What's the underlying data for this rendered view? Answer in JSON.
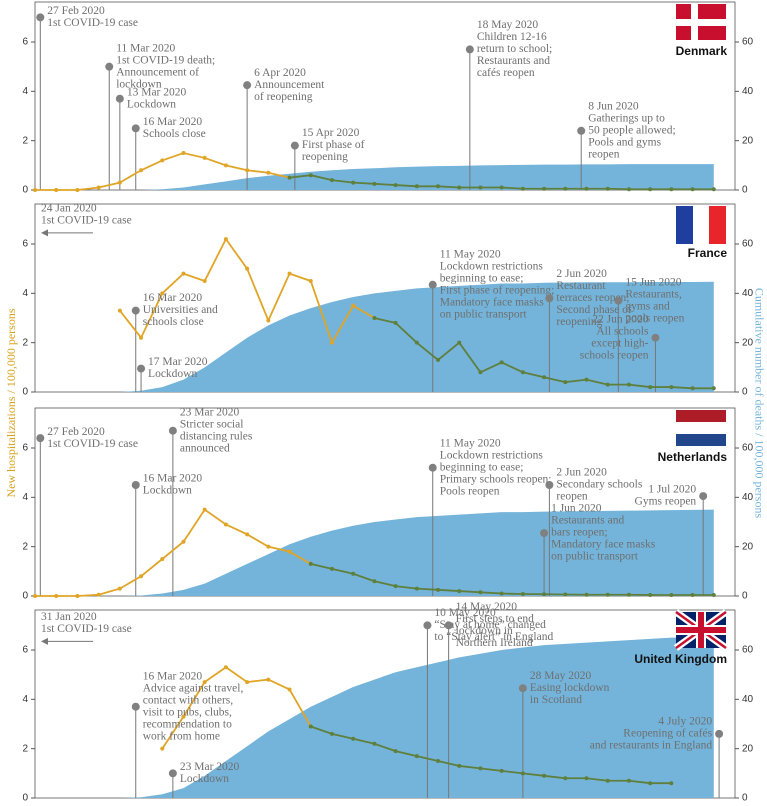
{
  "ylabel": "New hospitalizations / 100,000 persons",
  "y2label": "Cumulative number of deaths / 100,000 persons",
  "chart_data": [
    {
      "type": "line",
      "title": "Denmark",
      "x": [
        "2020-02-26",
        "2020-03-01",
        "2020-03-05",
        "2020-03-09",
        "2020-03-13",
        "2020-03-17",
        "2020-03-21",
        "2020-03-25",
        "2020-03-29",
        "2020-04-02",
        "2020-04-06",
        "2020-04-10",
        "2020-04-14",
        "2020-04-18",
        "2020-04-22",
        "2020-04-26",
        "2020-04-30",
        "2020-05-04",
        "2020-05-08",
        "2020-05-12",
        "2020-05-16",
        "2020-05-20",
        "2020-05-24",
        "2020-05-28",
        "2020-06-01",
        "2020-06-05",
        "2020-06-09",
        "2020-06-13",
        "2020-06-17",
        "2020-06-21",
        "2020-06-25",
        "2020-06-29",
        "2020-07-03"
      ],
      "xlim": [
        "2020-02-26",
        "2020-07-07"
      ],
      "ylim": [
        0,
        7.5
      ],
      "yticks": [
        0,
        2,
        4,
        6
      ],
      "y2lim": [
        0,
        75
      ],
      "y2ticks": [
        0,
        20,
        40,
        60
      ],
      "series": [
        {
          "color": "#e0a526",
          "values": [
            0,
            0,
            0,
            0.1,
            0.3,
            0.8,
            1.2,
            1.5,
            1.3,
            1.0,
            0.8,
            0.7,
            0.5,
            null,
            null,
            null,
            null,
            null,
            null,
            null,
            null,
            null,
            null,
            null,
            null,
            null,
            null,
            null,
            null,
            null,
            null,
            null,
            null
          ]
        },
        {
          "color": "#5f7f3c",
          "values": [
            null,
            null,
            null,
            null,
            null,
            null,
            null,
            null,
            null,
            null,
            null,
            null,
            0.5,
            0.6,
            0.4,
            0.3,
            0.25,
            0.2,
            0.15,
            0.15,
            0.1,
            0.1,
            0.1,
            0.05,
            0.05,
            0.05,
            0.05,
            0.05,
            0.03,
            0.03,
            0.03,
            0.03,
            0.03
          ]
        },
        {
          "axis": "y2",
          "color": "#74b4da",
          "values": [
            0,
            0,
            0,
            0,
            0,
            0,
            0.3,
            1,
            2.3,
            3.5,
            4.8,
            5.8,
            6.6,
            7.4,
            8,
            8.5,
            8.8,
            9.2,
            9.5,
            9.7,
            9.8,
            10,
            10.1,
            10.2,
            10.3,
            10.3,
            10.4,
            10.4,
            10.5,
            10.5,
            10.5,
            10.5,
            10.5
          ]
        }
      ],
      "annotations": [
        {
          "date": "27 Feb 2020",
          "text": [
            "1st COVID-19 case"
          ],
          "y": 7.0
        },
        {
          "date": "11 Mar 2020",
          "text": [
            "1st COVID-19 death;",
            "Announcement of",
            "lockdown"
          ],
          "y": 5.0
        },
        {
          "date": "13 Mar 2020",
          "text": [
            "Lockdown"
          ],
          "y": 3.7
        },
        {
          "date": "16 Mar 2020",
          "text": [
            "Schools close"
          ],
          "y": 2.5
        },
        {
          "date": "6 Apr 2020",
          "text": [
            "Announcement",
            "of reopening"
          ],
          "y": 4.25
        },
        {
          "date": "15 Apr 2020",
          "text": [
            "First phase of",
            "reopening"
          ],
          "y": 1.8
        },
        {
          "date": "18 May 2020",
          "text": [
            "Children 12-16",
            "return to school;",
            "Restaurants and",
            "cafés reopen"
          ],
          "y": 5.7
        },
        {
          "date": "8 Jun 2020",
          "text": [
            "Gatherings up to",
            "50 people allowed;",
            "Pools and gyms",
            "reopen"
          ],
          "y": 2.4
        }
      ]
    },
    {
      "type": "line",
      "title": "France",
      "x": [
        "2020-02-26",
        "2020-03-01",
        "2020-03-05",
        "2020-03-09",
        "2020-03-13",
        "2020-03-17",
        "2020-03-21",
        "2020-03-25",
        "2020-03-29",
        "2020-04-02",
        "2020-04-06",
        "2020-04-10",
        "2020-04-14",
        "2020-04-18",
        "2020-04-22",
        "2020-04-26",
        "2020-04-30",
        "2020-05-04",
        "2020-05-08",
        "2020-05-12",
        "2020-05-16",
        "2020-05-20",
        "2020-05-24",
        "2020-05-28",
        "2020-06-01",
        "2020-06-05",
        "2020-06-09",
        "2020-06-13",
        "2020-06-17",
        "2020-06-21",
        "2020-06-25",
        "2020-06-29",
        "2020-07-03"
      ],
      "xlim": [
        "2020-02-26",
        "2020-07-07"
      ],
      "ylim": [
        0,
        7.5
      ],
      "yticks": [
        0,
        2,
        4,
        6
      ],
      "y2lim": [
        0,
        75
      ],
      "y2ticks": [
        0,
        20,
        40,
        60
      ],
      "series": [
        {
          "color": "#e0a526",
          "values": [
            null,
            null,
            null,
            null,
            3.3,
            2.2,
            4.0,
            4.8,
            4.5,
            6.2,
            5.0,
            2.9,
            4.8,
            4.5,
            2.0,
            3.5,
            3.0,
            null,
            null,
            null,
            null,
            null,
            null,
            null,
            null,
            null,
            null,
            null,
            null,
            null,
            null,
            null,
            null
          ]
        },
        {
          "color": "#5f7f3c",
          "values": [
            null,
            null,
            null,
            null,
            null,
            null,
            null,
            null,
            null,
            null,
            null,
            null,
            null,
            null,
            null,
            null,
            3.0,
            2.8,
            2.0,
            1.3,
            2.0,
            0.8,
            1.2,
            0.8,
            0.6,
            0.4,
            0.5,
            0.3,
            0.3,
            0.2,
            0.2,
            0.15,
            0.15
          ]
        },
        {
          "axis": "y2",
          "color": "#74b4da",
          "values": [
            0,
            0,
            0,
            0,
            0,
            0.5,
            2,
            5,
            10,
            16,
            22,
            27,
            31,
            34,
            36.5,
            38.5,
            40,
            41,
            42,
            42.5,
            43,
            43.5,
            44,
            44,
            44.3,
            44.4,
            44.5,
            44.5,
            44.5,
            44.6,
            44.6,
            44.6,
            44.7
          ]
        }
      ],
      "annotations": [
        {
          "date": "24 Jan 2020",
          "text": [
            "1st COVID-19 case"
          ],
          "y": 6.45
        },
        {
          "date": "16 Mar 2020",
          "text": [
            "Universities and",
            "schools close"
          ],
          "y": 3.3
        },
        {
          "date": "17 Mar 2020",
          "text": [
            "Lockdown"
          ],
          "y": 0.95
        },
        {
          "date": "11 May 2020",
          "text": [
            "Lockdown restrictions",
            "beginning to ease;",
            "First phase of reopening;",
            "Mandatory face masks",
            "on public transport"
          ],
          "y": 4.35
        },
        {
          "date": "2 Jun 2020",
          "text": [
            "Restaurant",
            "terraces reopen;",
            "Second phase of",
            "reopening"
          ],
          "y": 3.8
        },
        {
          "date": "15 Jun 2020",
          "text": [
            "Restaurants,",
            "gyms and",
            "pools reopen"
          ],
          "y": 3.7
        },
        {
          "date": "22 Jun 2020",
          "text": [
            "All schools",
            "except high-",
            "schools reopen"
          ],
          "y": 2.2
        }
      ]
    },
    {
      "type": "line",
      "title": "Netherlands",
      "x": [
        "2020-02-26",
        "2020-03-01",
        "2020-03-05",
        "2020-03-09",
        "2020-03-13",
        "2020-03-17",
        "2020-03-21",
        "2020-03-25",
        "2020-03-29",
        "2020-04-02",
        "2020-04-06",
        "2020-04-10",
        "2020-04-14",
        "2020-04-18",
        "2020-04-22",
        "2020-04-26",
        "2020-04-30",
        "2020-05-04",
        "2020-05-08",
        "2020-05-12",
        "2020-05-16",
        "2020-05-20",
        "2020-05-24",
        "2020-05-28",
        "2020-06-01",
        "2020-06-05",
        "2020-06-09",
        "2020-06-13",
        "2020-06-17",
        "2020-06-21",
        "2020-06-25",
        "2020-06-29",
        "2020-07-03"
      ],
      "xlim": [
        "2020-02-26",
        "2020-07-07"
      ],
      "ylim": [
        0,
        7.5
      ],
      "yticks": [
        0,
        2,
        4,
        6
      ],
      "y2lim": [
        0,
        75
      ],
      "y2ticks": [
        0,
        20,
        40,
        60
      ],
      "series": [
        {
          "color": "#e0a526",
          "values": [
            0,
            0,
            0,
            0.05,
            0.3,
            0.8,
            1.5,
            2.2,
            3.5,
            2.9,
            2.5,
            2.0,
            1.8,
            1.3,
            null,
            null,
            null,
            null,
            null,
            null,
            null,
            null,
            null,
            null,
            null,
            null,
            null,
            null,
            null,
            null,
            null,
            null,
            null
          ]
        },
        {
          "color": "#5f7f3c",
          "values": [
            null,
            null,
            null,
            null,
            null,
            null,
            null,
            null,
            null,
            null,
            null,
            null,
            null,
            1.3,
            1.1,
            0.9,
            0.6,
            0.4,
            0.3,
            0.25,
            0.2,
            0.15,
            0.1,
            0.08,
            0.07,
            0.06,
            0.05,
            0.05,
            0.05,
            0.04,
            0.04,
            0.04,
            0.04
          ]
        },
        {
          "axis": "y2",
          "color": "#74b4da",
          "values": [
            0,
            0,
            0,
            0,
            0,
            0.2,
            1,
            2.5,
            5,
            9,
            13,
            17,
            21,
            24,
            26.5,
            28.5,
            30,
            31,
            32,
            32.5,
            33,
            33.5,
            34,
            34,
            34.2,
            34.3,
            34.4,
            34.5,
            34.6,
            34.7,
            34.8,
            34.9,
            35
          ]
        }
      ],
      "annotations": [
        {
          "date": "27 Feb 2020",
          "text": [
            "1st COVID-19 case"
          ],
          "y": 6.4
        },
        {
          "date": "16 Mar 2020",
          "text": [
            "Lockdown"
          ],
          "y": 4.5
        },
        {
          "date": "23 Mar 2020",
          "text": [
            "Stricter social",
            "distancing rules",
            "announced"
          ],
          "y": 6.7
        },
        {
          "date": "11 May 2020",
          "text": [
            "Lockdown restrictions",
            "beginning to ease;",
            "Primary schools reopen;",
            "Pools reopen"
          ],
          "y": 5.2
        },
        {
          "date": "1 Jun 2020",
          "text": [
            "Restaurants and",
            "bars reopen;",
            "Mandatory face masks",
            "on public transport"
          ],
          "y": 2.55
        },
        {
          "date": "2 Jun 2020",
          "text": [
            "Secondary schools",
            "reopen"
          ],
          "y": 4.5
        },
        {
          "date": "1 Jul 2020",
          "text": [
            "Gyms reopen"
          ],
          "y": 4.05
        }
      ]
    },
    {
      "type": "line",
      "title": "United Kingdom",
      "x": [
        "2020-02-26",
        "2020-03-01",
        "2020-03-05",
        "2020-03-09",
        "2020-03-13",
        "2020-03-17",
        "2020-03-21",
        "2020-03-25",
        "2020-03-29",
        "2020-04-02",
        "2020-04-06",
        "2020-04-10",
        "2020-04-14",
        "2020-04-18",
        "2020-04-22",
        "2020-04-26",
        "2020-04-30",
        "2020-05-04",
        "2020-05-08",
        "2020-05-12",
        "2020-05-16",
        "2020-05-20",
        "2020-05-24",
        "2020-05-28",
        "2020-06-01",
        "2020-06-05",
        "2020-06-09",
        "2020-06-13",
        "2020-06-17",
        "2020-06-21",
        "2020-06-25",
        "2020-06-29",
        "2020-07-03"
      ],
      "xlim": [
        "2020-02-26",
        "2020-07-07"
      ],
      "ylim": [
        0,
        7.5
      ],
      "yticks": [
        0,
        2,
        4,
        6
      ],
      "y2lim": [
        0,
        75
      ],
      "y2ticks": [
        0,
        20,
        40,
        60
      ],
      "series": [
        {
          "color": "#e0a526",
          "values": [
            null,
            null,
            null,
            null,
            null,
            null,
            2.0,
            3.3,
            4.7,
            5.3,
            4.7,
            4.8,
            4.4,
            2.9,
            null,
            null,
            null,
            null,
            null,
            null,
            null,
            null,
            null,
            null,
            null,
            null,
            null,
            null,
            null,
            null,
            null,
            null,
            null
          ]
        },
        {
          "color": "#5f7f3c",
          "values": [
            null,
            null,
            null,
            null,
            null,
            null,
            null,
            null,
            null,
            null,
            null,
            null,
            null,
            2.9,
            2.6,
            2.4,
            2.2,
            1.9,
            1.7,
            1.5,
            1.3,
            1.2,
            1.1,
            1.0,
            0.9,
            0.8,
            0.8,
            0.7,
            0.7,
            0.6,
            0.6,
            null,
            null
          ]
        },
        {
          "axis": "y2",
          "color": "#74b4da",
          "values": [
            0,
            0,
            0,
            0,
            0,
            0.3,
            1.5,
            4,
            9,
            15,
            21,
            27,
            32,
            37,
            41,
            45,
            48,
            51,
            53,
            55,
            57,
            58.5,
            60,
            61,
            62,
            62.5,
            63,
            63.5,
            64,
            64.5,
            65,
            65,
            65.5
          ]
        }
      ],
      "annotations": [
        {
          "date": "31 Jan 2020",
          "text": [
            "1st COVID-19 case"
          ],
          "y": 6.35
        },
        {
          "date": "16 Mar 2020",
          "text": [
            "Advice against travel,",
            "contact with others,",
            "visit to pubs, clubs,",
            "recommendation to",
            "work from home"
          ],
          "y": 3.7
        },
        {
          "date": "23 Mar 2020",
          "text": [
            "Lockdown"
          ],
          "y": 1.0
        },
        {
          "date": "10 May 2020",
          "text": [
            "“Stay at home” changed",
            "to “Stay alert” in England"
          ],
          "y": 7.0
        },
        {
          "date": "14 May 2020",
          "text": [
            "First steps to end",
            "lockdown in",
            "Northern Ireland"
          ],
          "y": 7.0
        },
        {
          "date": "28 May 2020",
          "text": [
            "Easing lockdown",
            "in Scotland"
          ],
          "y": 4.45
        },
        {
          "date": "4 July 2020",
          "text": [
            "Reopening of cafés",
            "and restaurants in England"
          ],
          "y": 2.6
        }
      ]
    }
  ]
}
